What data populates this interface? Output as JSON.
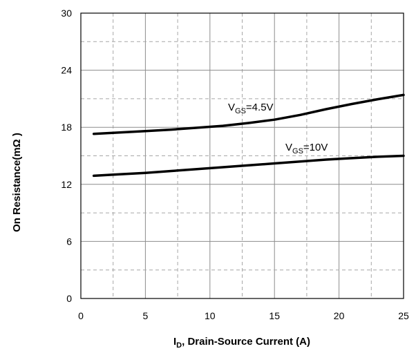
{
  "chart_data": {
    "type": "line",
    "xlabel": {
      "main": "I",
      "sub": "D",
      "rest": ", Drain-Source Current (A)"
    },
    "ylabel": "On Resistance(mΩ )",
    "xlim": [
      0,
      25
    ],
    "ylim": [
      0,
      30
    ],
    "xticks": [
      0,
      5,
      10,
      15,
      20,
      25
    ],
    "yticks": [
      0,
      6,
      12,
      18,
      24,
      30
    ],
    "grid": {
      "major": "solid",
      "minor": "dashed"
    },
    "line_color": "#000000",
    "series": [
      {
        "label": {
          "main": "V",
          "sub": "GS",
          "rest": "=4.5V"
        },
        "x": [
          1,
          3,
          5,
          7,
          9,
          11,
          13,
          15,
          17,
          19,
          21,
          23,
          25
        ],
        "y": [
          17.3,
          17.45,
          17.6,
          17.75,
          17.95,
          18.15,
          18.45,
          18.8,
          19.3,
          19.9,
          20.45,
          20.95,
          21.4
        ]
      },
      {
        "label": {
          "main": "V",
          "sub": "GS",
          "rest": "=10V"
        },
        "x": [
          1,
          3,
          5,
          7,
          9,
          11,
          13,
          15,
          17,
          19,
          21,
          23,
          25
        ],
        "y": [
          12.9,
          13.05,
          13.2,
          13.4,
          13.6,
          13.8,
          14.0,
          14.2,
          14.4,
          14.6,
          14.75,
          14.9,
          15.0
        ]
      }
    ]
  }
}
